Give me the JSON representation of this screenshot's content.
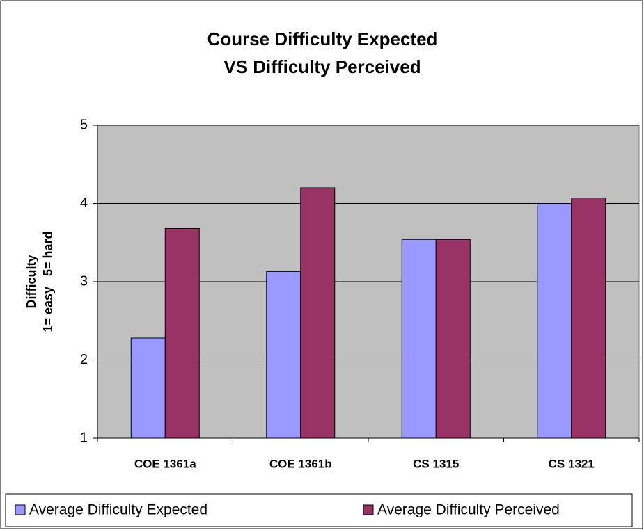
{
  "chart_data": {
    "type": "bar",
    "title": [
      "Course Difficulty Expected",
      "VS Difficulty Perceived"
    ],
    "y_label": [
      "Difficulty",
      "1= easy   5= hard"
    ],
    "categories": [
      "COE 1361a",
      "COE 1361b",
      "CS 1315",
      "CS 1321"
    ],
    "series": [
      {
        "name": "Average Difficulty Expected",
        "color": "#9999ff",
        "values": [
          2.28,
          3.13,
          3.54,
          4.0
        ]
      },
      {
        "name": "Average Difficulty Perceived",
        "color": "#993366",
        "values": [
          3.68,
          4.2,
          3.54,
          4.07
        ]
      }
    ],
    "ylim": [
      1,
      5
    ],
    "yticks": [
      1,
      2,
      3,
      4,
      5
    ],
    "grid": true,
    "legend": "bottom"
  }
}
